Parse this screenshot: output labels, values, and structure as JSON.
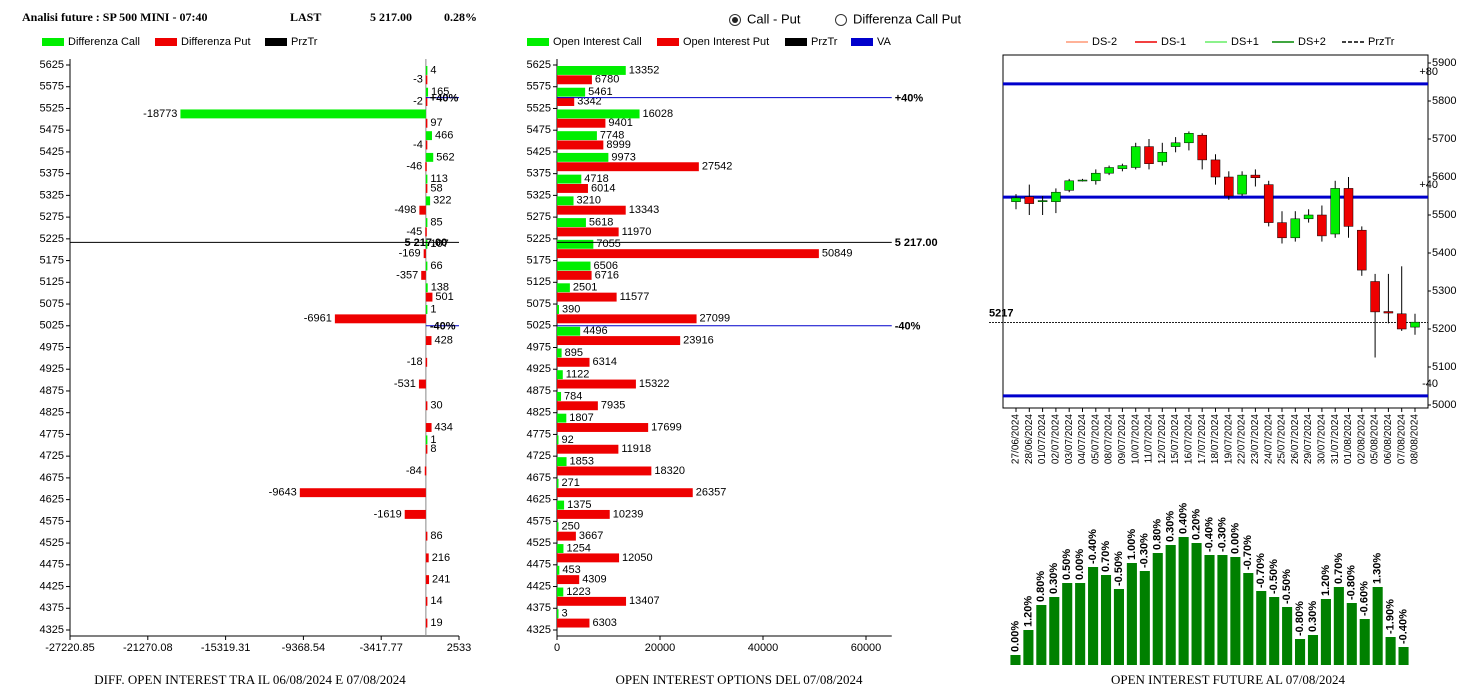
{
  "header": {
    "title": "Analisi future : SP 500 MINI - 07:40",
    "last_label": "LAST",
    "last_value": "5 217.00",
    "change": "0.28%"
  },
  "controls": [
    {
      "label": "Call - Put",
      "selected": true
    },
    {
      "label": "Differenza Call Put",
      "selected": false
    }
  ],
  "chart_data": [
    {
      "type": "bar",
      "orientation": "horizontal",
      "title": "DIFF. OPEN INTEREST TRA IL 06/08/2024 E 07/08/2024",
      "categories": [
        5625,
        5575,
        5525,
        5475,
        5425,
        5375,
        5325,
        5275,
        5225,
        5175,
        5125,
        5075,
        5025,
        4975,
        4925,
        4875,
        4825,
        4775,
        4725,
        4675,
        4625,
        4575,
        4525,
        4475,
        4425,
        4375,
        4325
      ],
      "series": [
        {
          "name": "Differenza Call",
          "color": "#00ee00",
          "values": [
            4,
            165,
            -18773,
            466,
            562,
            113,
            322,
            85,
            107,
            66,
            138,
            1,
            null,
            null,
            null,
            null,
            null,
            1,
            null,
            null,
            null,
            null,
            null,
            null,
            null,
            null,
            null
          ]
        },
        {
          "name": "Differenza Put",
          "color": "#ee0000",
          "values": [
            -3,
            -2,
            97,
            -4,
            -46,
            58,
            -498,
            -45,
            -169,
            -357,
            501,
            -6961,
            428,
            -18,
            -531,
            30,
            434,
            8,
            -84,
            -9643,
            -1619,
            86,
            216,
            241,
            14,
            19,
            null
          ]
        }
      ],
      "legend_extra": [
        {
          "name": "PrzTr",
          "color": "#000000"
        }
      ],
      "reference_lines": [
        {
          "value": 5217,
          "label": "5 217.00",
          "color": "#000000"
        },
        {
          "value": 5550,
          "label": "+40%",
          "color": "#0000cc"
        },
        {
          "value": 5025,
          "label": "-40%",
          "color": "#0000cc"
        }
      ],
      "xlim": [
        -27220.85,
        2533
      ],
      "xticks": [
        -27220.85,
        -21270.08,
        -15319.31,
        -9368.54,
        -3417.77,
        2533
      ],
      "ylim": [
        4325,
        5625
      ]
    },
    {
      "type": "bar",
      "orientation": "horizontal",
      "title": "OPEN INTEREST OPTIONS DEL 07/08/2024",
      "categories": [
        5625,
        5575,
        5525,
        5475,
        5425,
        5375,
        5325,
        5275,
        5225,
        5175,
        5125,
        5075,
        5025,
        4975,
        4925,
        4875,
        4825,
        4775,
        4725,
        4675,
        4625,
        4575,
        4525,
        4475,
        4425,
        4375,
        4325
      ],
      "series": [
        {
          "name": "Open Interest Call",
          "color": "#00ee00",
          "values": [
            13352,
            5461,
            16028,
            7748,
            9973,
            4718,
            3210,
            5618,
            7055,
            6506,
            2501,
            390,
            4496,
            895,
            1122,
            784,
            1807,
            92,
            1853,
            271,
            1375,
            250,
            1254,
            453,
            1223,
            3,
            null
          ]
        },
        {
          "name": "Open Interest Put",
          "color": "#ee0000",
          "values": [
            6780,
            3342,
            9401,
            8999,
            27542,
            6014,
            13343,
            11970,
            50849,
            6716,
            11577,
            27099,
            23916,
            6314,
            15322,
            7935,
            17699,
            11918,
            18320,
            26357,
            10239,
            3667,
            12050,
            4309,
            13407,
            6303,
            null
          ]
        }
      ],
      "legend_extra": [
        {
          "name": "PrzTr",
          "color": "#000000"
        },
        {
          "name": "VA",
          "color": "#0000cc"
        }
      ],
      "reference_lines": [
        {
          "value": 5217,
          "label": "5 217.00",
          "color": "#000000"
        },
        {
          "value": 5550,
          "label": "+40%",
          "color": "#0000cc"
        },
        {
          "value": 5025,
          "label": "-40%",
          "color": "#0000cc"
        }
      ],
      "xlim": [
        0,
        65000
      ],
      "xticks": [
        0,
        20000,
        40000,
        60000
      ],
      "ylim": [
        4325,
        5625
      ]
    },
    {
      "type": "candlestick",
      "categories": [
        "27/06/2024",
        "28/06/2024",
        "01/07/2024",
        "02/07/2024",
        "03/07/2024",
        "04/07/2024",
        "05/07/2024",
        "08/07/2024",
        "09/07/2024",
        "10/07/2024",
        "11/07/2024",
        "12/07/2024",
        "15/07/2024",
        "16/07/2024",
        "17/07/2024",
        "18/07/2024",
        "19/07/2024",
        "22/07/2024",
        "23/07/2024",
        "24/07/2024",
        "25/07/2024",
        "26/07/2024",
        "29/07/2024",
        "30/07/2024",
        "31/07/2024",
        "01/08/2024",
        "02/08/2024",
        "05/08/2024",
        "06/08/2024",
        "07/08/2024",
        "08/08/2024"
      ],
      "open": [
        5535,
        5548,
        5535,
        5535,
        5565,
        5590,
        5590,
        5610,
        5622,
        5625,
        5680,
        5640,
        5680,
        5690,
        5710,
        5645,
        5600,
        5555,
        5605,
        5580,
        5480,
        5440,
        5490,
        5500,
        5450,
        5570,
        5460,
        5325,
        5246,
        5240,
        5205
      ],
      "high": [
        5555,
        5580,
        5550,
        5570,
        5595,
        5595,
        5620,
        5630,
        5635,
        5690,
        5700,
        5690,
        5705,
        5720,
        5715,
        5660,
        5615,
        5615,
        5620,
        5590,
        5510,
        5510,
        5515,
        5525,
        5590,
        5600,
        5470,
        5345,
        5345,
        5365,
        5240
      ],
      "low": [
        5515,
        5500,
        5500,
        5505,
        5560,
        5588,
        5580,
        5605,
        5615,
        5620,
        5620,
        5630,
        5665,
        5670,
        5620,
        5580,
        5540,
        5550,
        5575,
        5470,
        5425,
        5430,
        5480,
        5430,
        5440,
        5440,
        5340,
        5125,
        5215,
        5195,
        5185
      ],
      "close": [
        5545,
        5530,
        5538,
        5560,
        5590,
        5592,
        5610,
        5625,
        5630,
        5680,
        5635,
        5665,
        5690,
        5715,
        5645,
        5600,
        5550,
        5605,
        5598,
        5480,
        5440,
        5490,
        5500,
        5445,
        5570,
        5470,
        5355,
        5245,
        5242,
        5200,
        5218
      ],
      "up_color": "#00ee00",
      "down_color": "#ee0000",
      "legend": [
        {
          "name": "DS-2",
          "color": "#ff9977"
        },
        {
          "name": "DS-1",
          "color": "#ee0000"
        },
        {
          "name": "DS+1",
          "color": "#66ee66"
        },
        {
          "name": "DS+2",
          "color": "#008800"
        },
        {
          "name": "PrzTr",
          "color": "#000000",
          "dash": true
        }
      ],
      "reference_lines": [
        {
          "value": 5845,
          "label": "+80",
          "color": "#0000cc"
        },
        {
          "value": 5547,
          "label": "+40",
          "color": "#0000cc"
        },
        {
          "value": 5024,
          "label": "-40",
          "color": "#0000cc"
        },
        {
          "value": 5217,
          "label": "5217",
          "color": "#000000",
          "dash": true
        }
      ],
      "ylim": [
        5000,
        5900
      ],
      "yticks": [
        5000,
        5100,
        5200,
        5300,
        5400,
        5500,
        5600,
        5700,
        5800,
        5900
      ]
    },
    {
      "type": "bar",
      "orientation": "vertical",
      "title": "OPEN INTEREST FUTURE AL 07/08/2024",
      "color": "#008000",
      "values": [
        10,
        35,
        60,
        68,
        82,
        82,
        98,
        90,
        76,
        102,
        94,
        112,
        120,
        128,
        122,
        110,
        110,
        108,
        92,
        74,
        68,
        58,
        26,
        30,
        66,
        78,
        62,
        46,
        78,
        28,
        18
      ],
      "labels": [
        "0.00%",
        "1.20%",
        "0.80%",
        "0.30%",
        "0.50%",
        "0.00%",
        "-0.40%",
        "0.70%",
        "-0.50%",
        "1.00%",
        "-0.30%",
        "0.80%",
        "0.30%",
        "0.40%",
        "0.20%",
        "-0.40%",
        "-0.30%",
        "0.00%",
        "-0.70%",
        "-0.70%",
        "-0.50%",
        "-0.50%",
        "-0.80%",
        "0.30%",
        "1.20%",
        "0.70%",
        "-0.80%",
        "-0.60%",
        "1.30%",
        "-1.90%",
        "-0.40%"
      ],
      "ylim": [
        0,
        130
      ]
    }
  ]
}
